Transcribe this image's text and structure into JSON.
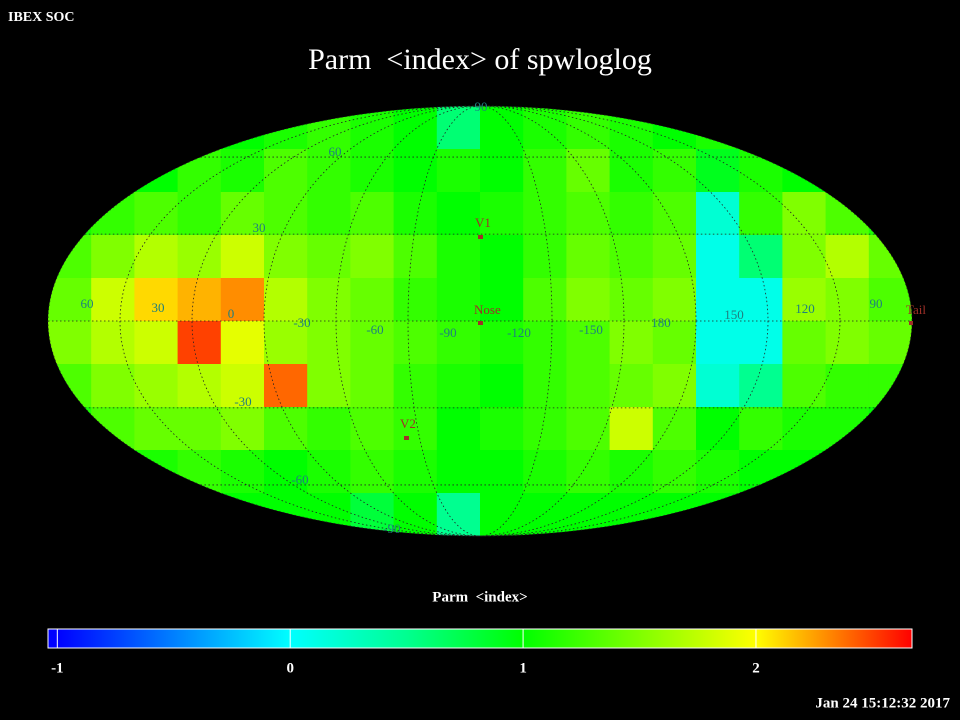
{
  "header": {
    "source": "IBEX SOC",
    "title": "Parm  <index> of spwloglog",
    "timestamp": "Jan 24 15:12:32 2017"
  },
  "map": {
    "grid_labels": [
      "90",
      "60",
      "30",
      "60",
      "30",
      "0",
      "-30",
      "-60",
      "-90",
      "-120",
      "-150",
      "180",
      "150",
      "120",
      "90",
      "-30",
      "-60",
      "-90"
    ],
    "markers": [
      "V1",
      "Nose",
      "V2",
      "Tail"
    ],
    "values": [
      [
        1.0,
        1.0,
        1.0,
        1.0,
        1.0,
        1.1,
        1.2,
        1.1,
        1.0,
        0.6,
        1.0,
        1.1,
        1.2,
        1.1,
        1.0,
        1.1,
        1.0,
        1.0,
        1.0,
        1.0
      ],
      [
        1.0,
        1.0,
        1.0,
        1.2,
        1.1,
        1.3,
        1.2,
        1.1,
        1.0,
        1.1,
        1.0,
        1.2,
        1.4,
        1.1,
        1.2,
        0.9,
        1.1,
        1.0,
        1.0,
        1.0
      ],
      [
        1.1,
        1.2,
        1.3,
        1.2,
        1.4,
        1.3,
        1.2,
        1.3,
        1.1,
        1.0,
        1.1,
        1.2,
        1.3,
        1.2,
        1.3,
        0.2,
        1.2,
        1.5,
        1.3,
        1.1
      ],
      [
        1.3,
        1.5,
        1.7,
        1.6,
        1.8,
        1.5,
        1.4,
        1.5,
        1.3,
        1.1,
        1.0,
        1.2,
        1.4,
        1.3,
        1.4,
        0.1,
        0.6,
        1.5,
        1.7,
        1.4
      ],
      [
        1.4,
        1.8,
        2.1,
        2.2,
        2.3,
        1.7,
        1.5,
        1.4,
        1.2,
        1.1,
        1.0,
        1.3,
        1.5,
        1.4,
        1.5,
        0.1,
        0.1,
        1.6,
        1.5,
        1.3
      ],
      [
        1.5,
        1.7,
        1.8,
        2.5,
        1.9,
        1.6,
        1.5,
        1.4,
        1.3,
        1.2,
        1.1,
        1.2,
        1.3,
        1.5,
        1.4,
        0.1,
        0.1,
        1.4,
        1.5,
        1.4
      ],
      [
        1.3,
        1.5,
        1.6,
        1.7,
        1.8,
        2.4,
        1.5,
        1.4,
        1.2,
        1.1,
        1.0,
        1.2,
        1.3,
        1.4,
        1.5,
        0.2,
        0.5,
        1.3,
        1.2,
        1.2
      ],
      [
        1.1,
        1.3,
        1.4,
        1.4,
        1.5,
        1.3,
        1.2,
        1.3,
        1.2,
        1.0,
        1.1,
        1.2,
        1.3,
        1.8,
        1.3,
        1.0,
        1.2,
        1.1,
        1.1,
        1.0
      ],
      [
        1.0,
        1.1,
        1.1,
        1.2,
        1.1,
        1.0,
        1.1,
        1.2,
        1.1,
        1.0,
        1.0,
        1.1,
        1.2,
        1.1,
        1.2,
        1.1,
        1.0,
        1.0,
        1.0,
        1.0
      ],
      [
        1.0,
        1.0,
        1.0,
        1.0,
        1.0,
        1.0,
        1.0,
        0.8,
        1.0,
        0.5,
        1.0,
        1.0,
        1.0,
        1.0,
        1.0,
        1.0,
        1.0,
        1.0,
        1.0,
        1.0
      ]
    ]
  },
  "colorbar": {
    "label": "Parm  <index>",
    "range": [
      -1.04,
      2.67
    ],
    "ticks": [
      -1,
      0,
      1,
      2
    ],
    "colormap": [
      {
        "value": -1,
        "color": "#0000ff"
      },
      {
        "value": 0,
        "color": "#00ffff"
      },
      {
        "value": 0.5,
        "color": "#00ff90"
      },
      {
        "value": 1,
        "color": "#00ff00"
      },
      {
        "value": 2,
        "color": "#ffff00"
      },
      {
        "value": 2.67,
        "color": "#ff0000"
      }
    ]
  }
}
